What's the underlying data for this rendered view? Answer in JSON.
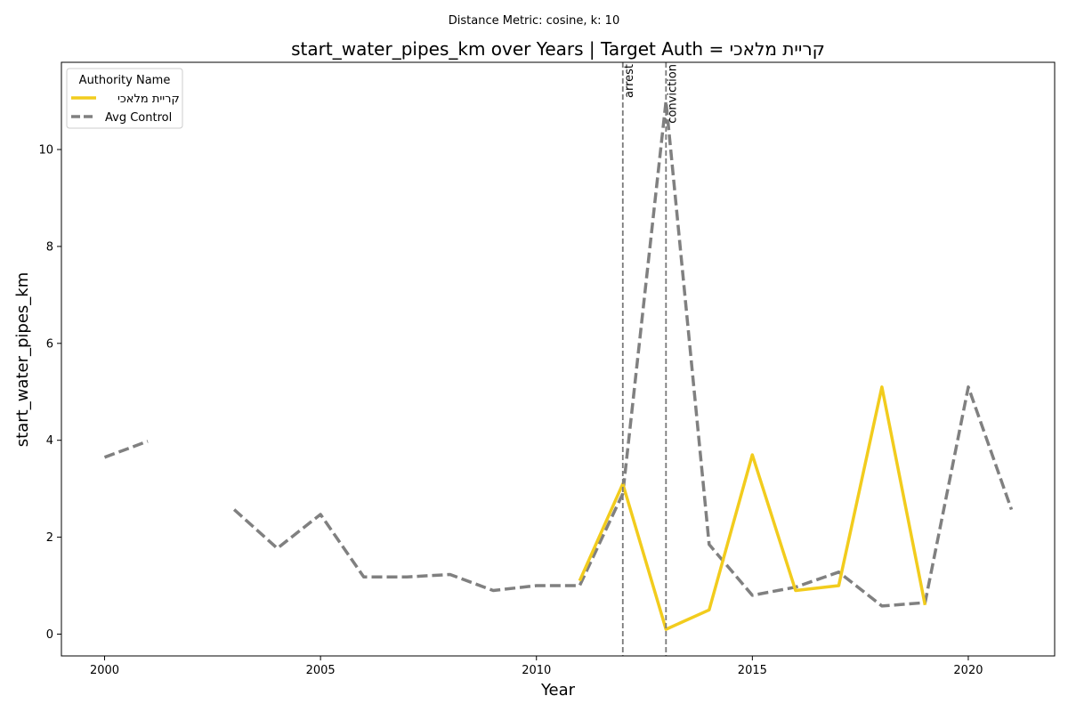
{
  "chart_data": {
    "type": "line",
    "suptitle": "Distance Metric: cosine, k: 10",
    "title": "start_water_pipes_km over Years | Target Auth = קריית מלאכי",
    "xlabel": "Year",
    "ylabel": "start_water_pipes_km",
    "xlim": [
      1999,
      2022
    ],
    "ylim": [
      -0.45,
      11.8
    ],
    "xticks": [
      2000,
      2005,
      2010,
      2015,
      2020
    ],
    "yticks": [
      0,
      2,
      4,
      6,
      8,
      10
    ],
    "grid": false,
    "legend": {
      "title": "Authority Name",
      "placement": "top-left"
    },
    "series": [
      {
        "name": "קריית מלאכי",
        "color": "#f2cc1d",
        "style": "solid",
        "points": [
          [
            2011,
            1.1
          ],
          [
            2012,
            3.1
          ],
          [
            2013,
            0.1
          ],
          [
            2014,
            0.5
          ],
          [
            2015,
            3.7
          ],
          [
            2016,
            0.9
          ],
          [
            2017,
            1.0
          ],
          [
            2018,
            5.1
          ],
          [
            2019,
            0.6
          ]
        ]
      },
      {
        "name": "Avg Control",
        "color": "#808080",
        "style": "dashed",
        "points": [
          [
            2000,
            3.65
          ],
          [
            2001,
            3.98
          ],
          [
            2002,
            null
          ],
          [
            2003,
            2.57
          ],
          [
            2004,
            1.77
          ],
          [
            2005,
            2.47
          ],
          [
            2006,
            1.18
          ],
          [
            2007,
            1.18
          ],
          [
            2008,
            1.23
          ],
          [
            2009,
            0.9
          ],
          [
            2010,
            1.0
          ],
          [
            2011,
            1.0
          ],
          [
            2012,
            2.9
          ],
          [
            2013,
            11.0
          ],
          [
            2014,
            1.85
          ],
          [
            2015,
            0.8
          ],
          [
            2016,
            0.97
          ],
          [
            2017,
            1.28
          ],
          [
            2018,
            0.58
          ],
          [
            2019,
            0.65
          ],
          [
            2020,
            5.1
          ],
          [
            2021,
            2.57
          ]
        ]
      }
    ],
    "events": [
      {
        "label": "arrest",
        "x": 2012
      },
      {
        "label": "conviction",
        "x": 2013
      }
    ]
  }
}
